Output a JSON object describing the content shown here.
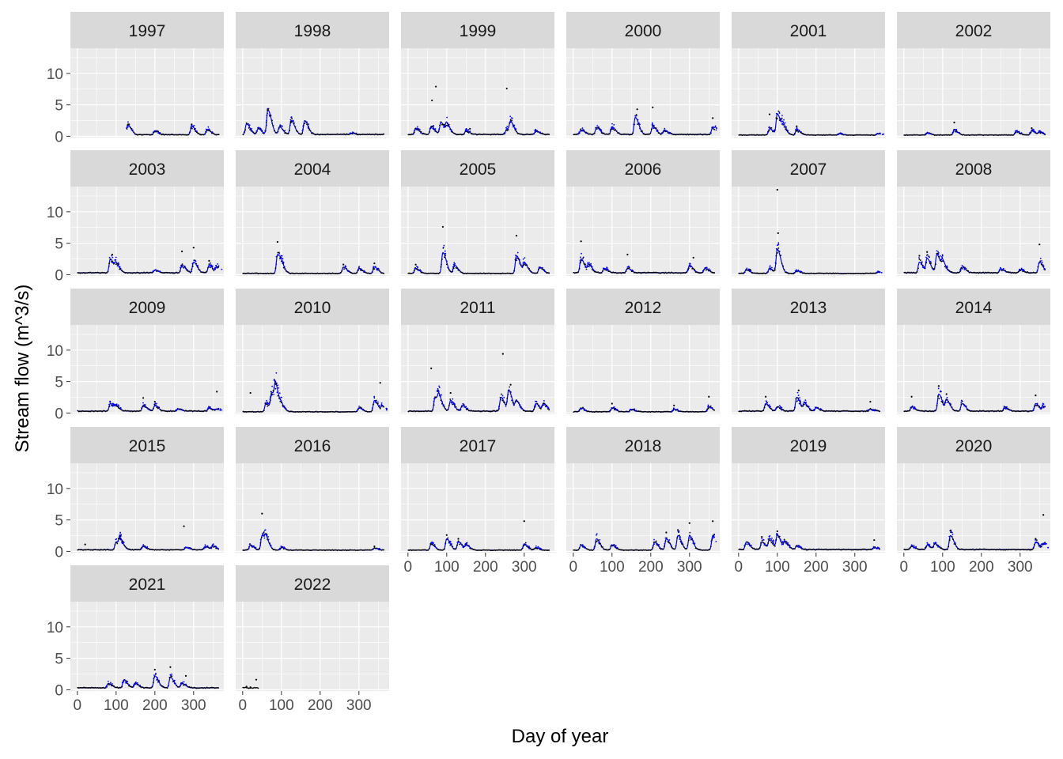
{
  "chart_data": {
    "type": "scatter",
    "layout": "facet_wrap",
    "xlabel": "Day of year",
    "ylabel": "Stream flow (m^3/s)",
    "xlim": [
      -18,
      378
    ],
    "ylim": [
      -0.2,
      14
    ],
    "x_ticks": [
      0,
      100,
      200,
      300
    ],
    "y_ticks": [
      0,
      5,
      10
    ],
    "ncol": 6,
    "grid": true,
    "legend": "none",
    "colors": {
      "panel_bg": "#EBEBEB",
      "strip_bg": "#D9D9D9",
      "grid": "#FFFFFF",
      "observed": "#000000",
      "modelled": "#0000FF",
      "tick_text": "#4D4D4D"
    },
    "series": [
      {
        "color": "#000000",
        "role": "points"
      },
      {
        "color": "#0000FF",
        "role": "line+points"
      }
    ],
    "panels": [
      {
        "year": "1997",
        "start": 128,
        "end": 365,
        "base": 0.25,
        "peaks": [
          [
            130,
            1.8
          ],
          [
            200,
            0.9
          ],
          [
            295,
            1.6
          ],
          [
            335,
            1.1
          ]
        ],
        "black_outliers": [
          [
            130,
            1.8
          ],
          [
            295,
            1.9
          ]
        ]
      },
      {
        "year": "1998",
        "start": 1,
        "end": 365,
        "base": 0.3,
        "peaks": [
          [
            10,
            2.0
          ],
          [
            40,
            1.2
          ],
          [
            65,
            4.2
          ],
          [
            95,
            1.5
          ],
          [
            125,
            2.5
          ],
          [
            160,
            2.5
          ],
          [
            280,
            0.5
          ]
        ],
        "black_outliers": [
          [
            65,
            4.2
          ],
          [
            125,
            2.3
          ]
        ]
      },
      {
        "year": "1999",
        "start": 1,
        "end": 365,
        "base": 0.3,
        "peaks": [
          [
            20,
            1.3
          ],
          [
            60,
            1.6
          ],
          [
            85,
            2.2
          ],
          [
            100,
            1.8
          ],
          [
            150,
            0.9
          ],
          [
            255,
            1.2
          ],
          [
            265,
            2.0
          ],
          [
            330,
            0.8
          ]
        ],
        "black_outliers": [
          [
            62,
            5.7
          ],
          [
            72,
            7.9
          ],
          [
            255,
            7.6
          ],
          [
            160,
            1.2
          ]
        ]
      },
      {
        "year": "2000",
        "start": 1,
        "end": 365,
        "base": 0.3,
        "peaks": [
          [
            20,
            1.0
          ],
          [
            60,
            1.4
          ],
          [
            100,
            1.5
          ],
          [
            160,
            3.0
          ],
          [
            205,
            1.6
          ],
          [
            235,
            1.0
          ],
          [
            360,
            1.5
          ]
        ],
        "black_outliers": [
          [
            165,
            4.3
          ],
          [
            205,
            4.6
          ],
          [
            360,
            2.9
          ]
        ]
      },
      {
        "year": "2001",
        "start": 1,
        "end": 365,
        "base": 0.2,
        "peaks": [
          [
            80,
            1.2
          ],
          [
            100,
            3.5
          ],
          [
            115,
            1.5
          ],
          [
            150,
            1.0
          ],
          [
            260,
            0.4
          ],
          [
            360,
            0.4
          ]
        ],
        "black_outliers": [
          [
            80,
            3.5
          ],
          [
            150,
            1.6
          ]
        ]
      },
      {
        "year": "2002",
        "start": 1,
        "end": 365,
        "base": 0.2,
        "peaks": [
          [
            60,
            0.5
          ],
          [
            130,
            1.0
          ],
          [
            290,
            0.8
          ],
          [
            330,
            0.9
          ],
          [
            350,
            0.6
          ]
        ],
        "black_outliers": [
          [
            130,
            2.2
          ],
          [
            330,
            1.3
          ]
        ]
      },
      {
        "year": "2003",
        "start": 1,
        "end": 365,
        "base": 0.3,
        "peaks": [
          [
            85,
            2.5
          ],
          [
            100,
            1.5
          ],
          [
            200,
            0.7
          ],
          [
            270,
            1.5
          ],
          [
            300,
            2.0
          ],
          [
            340,
            1.5
          ],
          [
            360,
            1.2
          ]
        ],
        "black_outliers": [
          [
            90,
            3.2
          ],
          [
            270,
            3.7
          ],
          [
            300,
            4.3
          ],
          [
            340,
            2.2
          ]
        ]
      },
      {
        "year": "2004",
        "start": 1,
        "end": 365,
        "base": 0.2,
        "peaks": [
          [
            90,
            3.2
          ],
          [
            100,
            1.0
          ],
          [
            260,
            1.2
          ],
          [
            300,
            1.0
          ],
          [
            340,
            1.2
          ]
        ],
        "black_outliers": [
          [
            90,
            5.2
          ],
          [
            260,
            1.6
          ],
          [
            340,
            1.8
          ]
        ]
      },
      {
        "year": "2005",
        "start": 1,
        "end": 365,
        "base": 0.2,
        "peaks": [
          [
            20,
            1.0
          ],
          [
            90,
            3.5
          ],
          [
            120,
            1.5
          ],
          [
            280,
            3.0
          ],
          [
            300,
            1.8
          ],
          [
            340,
            1.2
          ]
        ],
        "black_outliers": [
          [
            90,
            7.6
          ],
          [
            280,
            6.2
          ],
          [
            20,
            1.6
          ]
        ]
      },
      {
        "year": "2006",
        "start": 1,
        "end": 365,
        "base": 0.3,
        "peaks": [
          [
            20,
            2.5
          ],
          [
            40,
            1.5
          ],
          [
            80,
            1.0
          ],
          [
            140,
            1.0
          ],
          [
            300,
            1.5
          ],
          [
            340,
            1.0
          ]
        ],
        "black_outliers": [
          [
            20,
            5.3
          ],
          [
            140,
            3.2
          ],
          [
            310,
            2.7
          ]
        ]
      },
      {
        "year": "2007",
        "start": 1,
        "end": 365,
        "base": 0.2,
        "peaks": [
          [
            20,
            0.8
          ],
          [
            80,
            1.0
          ],
          [
            100,
            4.0
          ],
          [
            150,
            0.6
          ],
          [
            360,
            0.4
          ]
        ],
        "black_outliers": [
          [
            100,
            13.5
          ],
          [
            102,
            6.6
          ],
          [
            30,
            0.8
          ]
        ]
      },
      {
        "year": "2008",
        "start": 1,
        "end": 365,
        "base": 0.3,
        "peaks": [
          [
            40,
            2.0
          ],
          [
            60,
            2.5
          ],
          [
            85,
            3.2
          ],
          [
            100,
            1.8
          ],
          [
            150,
            1.2
          ],
          [
            250,
            0.9
          ],
          [
            300,
            0.8
          ],
          [
            350,
            2.0
          ]
        ],
        "black_outliers": [
          [
            40,
            3.0
          ],
          [
            60,
            3.6
          ],
          [
            350,
            4.8
          ]
        ]
      },
      {
        "year": "2009",
        "start": 1,
        "end": 365,
        "base": 0.3,
        "peaks": [
          [
            85,
            1.5
          ],
          [
            100,
            1.0
          ],
          [
            170,
            1.2
          ],
          [
            200,
            1.2
          ],
          [
            260,
            0.6
          ],
          [
            340,
            0.8
          ],
          [
            360,
            0.6
          ]
        ],
        "black_outliers": [
          [
            170,
            2.4
          ],
          [
            360,
            3.4
          ],
          [
            200,
            1.8
          ]
        ]
      },
      {
        "year": "2010",
        "start": 1,
        "end": 365,
        "base": 0.2,
        "peaks": [
          [
            60,
            1.5
          ],
          [
            75,
            3.0
          ],
          [
            85,
            3.5
          ],
          [
            100,
            1.0
          ],
          [
            300,
            0.8
          ],
          [
            340,
            2.0
          ],
          [
            360,
            1.0
          ]
        ],
        "black_outliers": [
          [
            20,
            3.2
          ],
          [
            85,
            4.6
          ],
          [
            355,
            4.8
          ],
          [
            75,
            3.0
          ]
        ]
      },
      {
        "year": "2011",
        "start": 1,
        "end": 365,
        "base": 0.3,
        "peaks": [
          [
            70,
            2.5
          ],
          [
            80,
            2.0
          ],
          [
            110,
            2.0
          ],
          [
            140,
            1.2
          ],
          [
            240,
            2.5
          ],
          [
            260,
            3.5
          ],
          [
            280,
            1.8
          ],
          [
            330,
            1.5
          ],
          [
            350,
            1.5
          ]
        ],
        "black_outliers": [
          [
            60,
            7.1
          ],
          [
            245,
            9.4
          ],
          [
            265,
            4.5
          ],
          [
            110,
            3.2
          ]
        ]
      },
      {
        "year": "2012",
        "start": 1,
        "end": 365,
        "base": 0.2,
        "peaks": [
          [
            20,
            0.8
          ],
          [
            100,
            0.8
          ],
          [
            150,
            0.6
          ],
          [
            260,
            0.6
          ],
          [
            350,
            1.0
          ]
        ],
        "black_outliers": [
          [
            100,
            1.5
          ],
          [
            350,
            2.6
          ],
          [
            260,
            1.2
          ]
        ]
      },
      {
        "year": "2013",
        "start": 1,
        "end": 365,
        "base": 0.3,
        "peaks": [
          [
            70,
            1.5
          ],
          [
            100,
            1.0
          ],
          [
            150,
            2.5
          ],
          [
            170,
            1.5
          ],
          [
            200,
            0.8
          ],
          [
            340,
            0.6
          ]
        ],
        "black_outliers": [
          [
            70,
            2.6
          ],
          [
            155,
            3.6
          ],
          [
            340,
            1.8
          ]
        ]
      },
      {
        "year": "2014",
        "start": 1,
        "end": 365,
        "base": 0.3,
        "peaks": [
          [
            20,
            1.0
          ],
          [
            90,
            3.0
          ],
          [
            110,
            2.0
          ],
          [
            150,
            1.5
          ],
          [
            260,
            0.8
          ],
          [
            340,
            1.5
          ],
          [
            360,
            1.0
          ]
        ],
        "black_outliers": [
          [
            20,
            2.6
          ],
          [
            90,
            4.3
          ],
          [
            340,
            2.8
          ],
          [
            110,
            3.0
          ]
        ]
      },
      {
        "year": "2015",
        "start": 1,
        "end": 365,
        "base": 0.25,
        "peaks": [
          [
            100,
            1.5
          ],
          [
            110,
            1.6
          ],
          [
            170,
            0.8
          ],
          [
            280,
            0.6
          ],
          [
            330,
            0.8
          ],
          [
            350,
            0.8
          ]
        ],
        "black_outliers": [
          [
            275,
            4.0
          ],
          [
            20,
            1.1
          ],
          [
            110,
            2.0
          ]
        ]
      },
      {
        "year": "2016",
        "start": 1,
        "end": 365,
        "base": 0.2,
        "peaks": [
          [
            20,
            1.0
          ],
          [
            50,
            2.5
          ],
          [
            60,
            1.5
          ],
          [
            100,
            0.6
          ],
          [
            340,
            0.5
          ]
        ],
        "black_outliers": [
          [
            50,
            6.0
          ],
          [
            340,
            0.8
          ]
        ]
      },
      {
        "year": "2017",
        "start": 1,
        "end": 365,
        "base": 0.2,
        "peaks": [
          [
            60,
            1.2
          ],
          [
            100,
            2.0
          ],
          [
            130,
            1.5
          ],
          [
            150,
            1.0
          ],
          [
            300,
            1.2
          ],
          [
            330,
            0.6
          ]
        ],
        "black_outliers": [
          [
            300,
            4.8
          ],
          [
            100,
            2.6
          ],
          [
            130,
            2.0
          ]
        ]
      },
      {
        "year": "2018",
        "start": 1,
        "end": 365,
        "base": 0.2,
        "peaks": [
          [
            20,
            1.0
          ],
          [
            60,
            2.0
          ],
          [
            100,
            1.0
          ],
          [
            210,
            1.5
          ],
          [
            240,
            2.0
          ],
          [
            270,
            2.5
          ],
          [
            300,
            2.5
          ],
          [
            360,
            2.5
          ]
        ],
        "black_outliers": [
          [
            240,
            3.0
          ],
          [
            270,
            3.4
          ],
          [
            300,
            4.5
          ],
          [
            360,
            4.8
          ]
        ]
      },
      {
        "year": "2019",
        "start": 1,
        "end": 365,
        "base": 0.3,
        "peaks": [
          [
            20,
            1.5
          ],
          [
            60,
            1.5
          ],
          [
            80,
            2.0
          ],
          [
            100,
            2.5
          ],
          [
            120,
            1.5
          ],
          [
            150,
            0.8
          ],
          [
            350,
            0.6
          ]
        ],
        "black_outliers": [
          [
            100,
            3.2
          ],
          [
            60,
            2.3
          ],
          [
            350,
            1.8
          ]
        ]
      },
      {
        "year": "2020",
        "start": 1,
        "end": 365,
        "base": 0.3,
        "peaks": [
          [
            20,
            0.8
          ],
          [
            60,
            1.0
          ],
          [
            80,
            1.2
          ],
          [
            120,
            2.5
          ],
          [
            340,
            1.5
          ],
          [
            360,
            1.2
          ]
        ],
        "black_outliers": [
          [
            120,
            3.3
          ],
          [
            360,
            5.8
          ],
          [
            340,
            2.0
          ]
        ]
      },
      {
        "year": "2021",
        "start": 1,
        "end": 365,
        "base": 0.3,
        "peaks": [
          [
            80,
            1.0
          ],
          [
            120,
            1.5
          ],
          [
            150,
            1.0
          ],
          [
            200,
            2.2
          ],
          [
            240,
            2.0
          ],
          [
            270,
            1.0
          ]
        ],
        "black_outliers": [
          [
            200,
            3.2
          ],
          [
            240,
            3.6
          ],
          [
            280,
            2.2
          ]
        ]
      },
      {
        "year": "2022",
        "start": 1,
        "end": 40,
        "base": 0.3,
        "peaks": [],
        "black_outliers": [
          [
            10,
            0.5
          ],
          [
            20,
            0.4
          ],
          [
            35,
            1.6
          ]
        ],
        "blue": false
      }
    ]
  }
}
